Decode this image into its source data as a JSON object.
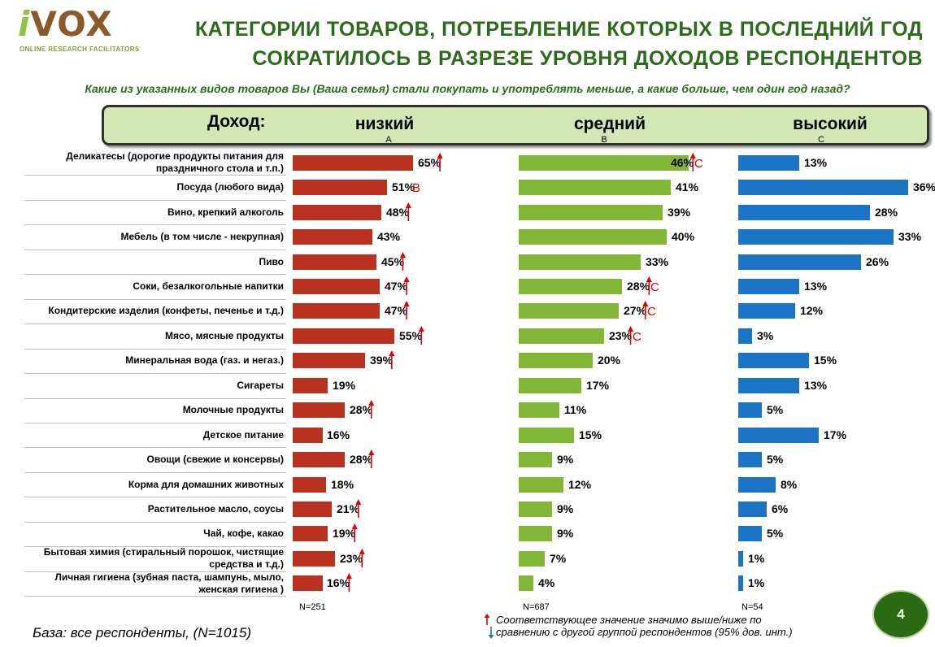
{
  "logo": {
    "text_i": "i",
    "text_rest": "VOX",
    "tagline": "ONLINE RESEARCH FACILITATORS"
  },
  "header": {
    "title_line1": "Категории товаров, потребление которых в последний год",
    "title_line2": "сократилось в разрезе уровня доходов респондентов",
    "question": "Какие из указанных видов товаров Вы (Ваша семья) стали покупать и употреблять меньше, а какие больше, чем один год назад?",
    "income_label": "Доход:"
  },
  "colors": {
    "low": "#b8321f",
    "mid": "#82b636",
    "high": "#1a73c4",
    "title": "#2d6b1c",
    "marker": "#e00000"
  },
  "footer": {
    "base": "База: все респонденты, (N=1015)",
    "legend_line1": "Соответствующее значение значимо выше/ниже по",
    "legend_line2": "сравнению с другой группой респондентов (95% дов. инт.)",
    "page_number": "4"
  },
  "chart_data": {
    "type": "bar",
    "orientation": "horizontal",
    "unit": "%",
    "groups": [
      {
        "name": "низкий",
        "letter": "A",
        "n": "N=251"
      },
      {
        "name": "средний",
        "letter": "B",
        "n": "N=687"
      },
      {
        "name": "высокий",
        "letter": "C",
        "n": "N=54"
      }
    ],
    "categories": [
      "Деликатесы (дорогие продукты питания для праздничного стола и т.п.)",
      "Посуда (любого вида)",
      "Вино, крепкий алкоголь",
      "Мебель (в том числе - некрупная)",
      "Пиво",
      "Соки, безалкогольные напитки",
      "Кондитерские изделия (конфеты, печенье и т.д.)",
      "Мясо, мясные продукты",
      "Минеральная вода (газ. и негаз.)",
      "Сигареты",
      "Молочные продукты",
      "Детское питание",
      "Овощи (свежие и консервы)",
      "Корма для домашних животных",
      "Растительное масло, соусы",
      "Чай, кофе, какао",
      "Бытовая химия (стиральный порошок, чистящие средства и т.д.)",
      "Личная гигиена (зубная паста, шампунь, мыло, женская гигиена )"
    ],
    "series": [
      {
        "values": [
          65,
          51,
          48,
          43,
          45,
          47,
          47,
          55,
          39,
          19,
          28,
          16,
          28,
          18,
          21,
          19,
          23,
          16
        ],
        "significant_up": [
          true,
          false,
          true,
          false,
          true,
          true,
          true,
          true,
          true,
          false,
          true,
          false,
          true,
          false,
          true,
          true,
          true,
          true
        ],
        "letters": [
          "",
          "B",
          "",
          "",
          "",
          "",
          "",
          "",
          "",
          "",
          "",
          "",
          "",
          "",
          "",
          "",
          "",
          ""
        ]
      },
      {
        "values": [
          46,
          41,
          39,
          40,
          33,
          28,
          27,
          23,
          20,
          17,
          11,
          15,
          9,
          12,
          9,
          9,
          7,
          4
        ],
        "significant_up": [
          true,
          false,
          false,
          false,
          false,
          true,
          true,
          true,
          false,
          false,
          false,
          false,
          false,
          false,
          false,
          false,
          false,
          false
        ],
        "letters": [
          "C",
          "",
          "",
          "",
          "",
          "C",
          "C",
          "C",
          "",
          "",
          "",
          "",
          "",
          "",
          "",
          "",
          "",
          ""
        ]
      },
      {
        "values": [
          13,
          36,
          28,
          33,
          26,
          13,
          12,
          3,
          15,
          13,
          5,
          17,
          5,
          8,
          6,
          5,
          1,
          1
        ],
        "significant_up": [
          false,
          false,
          false,
          false,
          false,
          false,
          false,
          false,
          false,
          false,
          false,
          false,
          false,
          false,
          false,
          false,
          false,
          false
        ],
        "letters": [
          "",
          "",
          "",
          "",
          "",
          "",
          "",
          "",
          "",
          "",
          "",
          "",
          "",
          "",
          "",
          "",
          "",
          ""
        ]
      }
    ]
  }
}
